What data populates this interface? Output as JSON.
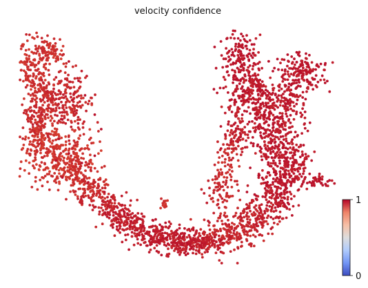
{
  "chart_data": {
    "type": "scatter",
    "title": "velocity confidence",
    "xlabel": "",
    "ylabel": "",
    "grid": false,
    "colormap": "coolwarm",
    "colorbar": {
      "min": 0,
      "max": 1,
      "min_label": "0",
      "max_label": "1",
      "colors": [
        "#3b4cc0",
        "#7396f5",
        "#b0cbfc",
        "#dddddd",
        "#f6bfa6",
        "#ee8468",
        "#b40426"
      ]
    },
    "point_color_high": "#b8102a",
    "point_color_mid": "#d7402f",
    "point_value_range": [
      0.75,
      1.0
    ],
    "regions": [
      {
        "name": "upper-left lobe",
        "x": [
          0.17,
          0.2,
          0.18,
          0.15,
          0.14,
          0.22,
          0.25,
          0.27
        ],
        "y": [
          0.86,
          0.78,
          0.7,
          0.62,
          0.54,
          0.72,
          0.64,
          0.58
        ]
      },
      {
        "name": "left cluster",
        "x": [
          0.13,
          0.17,
          0.21,
          0.25,
          0.15,
          0.23
        ],
        "y": [
          0.45,
          0.48,
          0.44,
          0.47,
          0.38,
          0.36
        ]
      },
      {
        "name": "lower arc",
        "x": [
          0.28,
          0.34,
          0.4,
          0.46,
          0.52,
          0.58,
          0.64,
          0.68
        ],
        "y": [
          0.32,
          0.24,
          0.18,
          0.13,
          0.1,
          0.09,
          0.12,
          0.16
        ]
      },
      {
        "name": "right trunk",
        "x": [
          0.7,
          0.72,
          0.73,
          0.74,
          0.75,
          0.72,
          0.68,
          0.64
        ],
        "y": [
          0.22,
          0.32,
          0.42,
          0.52,
          0.62,
          0.7,
          0.6,
          0.5
        ]
      },
      {
        "name": "upper-right arms",
        "x": [
          0.62,
          0.66,
          0.7,
          0.8,
          0.84,
          0.78
        ],
        "y": [
          0.92,
          0.84,
          0.78,
          0.82,
          0.76,
          0.72
        ]
      },
      {
        "name": "right tail",
        "x": [
          0.8,
          0.84,
          0.88
        ],
        "y": [
          0.36,
          0.34,
          0.33
        ]
      }
    ]
  }
}
